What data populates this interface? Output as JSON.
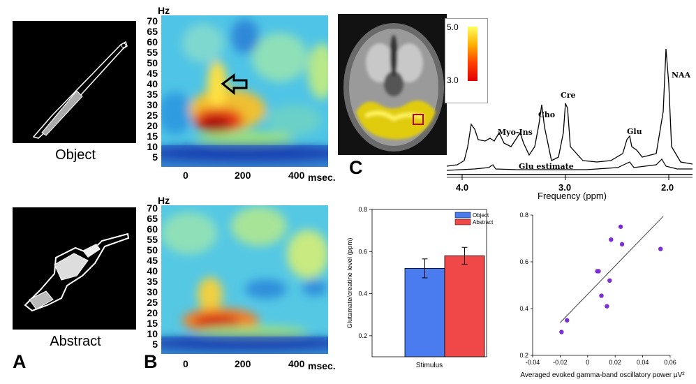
{
  "panel_a": {
    "letter": "A",
    "object_caption": "Object",
    "abstract_caption": "Abstract"
  },
  "panel_b": {
    "letter": "B",
    "y_unit": "Hz",
    "x_unit": "msec.",
    "y_ticks": [
      "70",
      "65",
      "60",
      "55",
      "50",
      "45",
      "40",
      "35",
      "30",
      "25",
      "20",
      "15",
      "10",
      "5"
    ],
    "x_ticks": [
      "0",
      "200",
      "400"
    ]
  },
  "panel_c": {
    "letter": "C",
    "colorbar_max": "5.0",
    "colorbar_min": "3.0",
    "peaks": {
      "myo": "Myo-Ins",
      "cho": "Cho",
      "cre": "Cre",
      "glu": "Glu",
      "naa": "NAA",
      "glu_estimate": "Glu estimate"
    },
    "freq_ticks": [
      "4.0",
      "3.0",
      "2.0"
    ],
    "freq_label": "Frequency (ppm)"
  },
  "chart_data": [
    {
      "type": "bar",
      "categories": [
        "Object",
        "Abstract"
      ],
      "values": [
        0.52,
        0.58
      ],
      "errors": [
        0.045,
        0.04
      ],
      "colors": [
        "#4a7cf0",
        "#f04848"
      ],
      "ylabel": "Glutamate/creatine level (ppm)",
      "xlabel": "Stimulus",
      "ylim": [
        0.1,
        0.8
      ],
      "yticks": [
        "0.2",
        "0.4",
        "0.6",
        "0.8"
      ],
      "legend": [
        "Object",
        "Abstract"
      ],
      "legend_position": "top-right"
    },
    {
      "type": "scatter",
      "x": [
        -0.019,
        -0.015,
        0.007,
        0.008,
        0.01,
        0.014,
        0.016,
        0.017,
        0.024,
        0.025,
        0.053
      ],
      "y": [
        0.3,
        0.35,
        0.56,
        0.56,
        0.455,
        0.41,
        0.52,
        0.695,
        0.75,
        0.675,
        0.655
      ],
      "fit_line": {
        "x": [
          -0.02,
          0.055
        ],
        "y": [
          0.34,
          0.795
        ]
      },
      "point_color": "#7a2fd6",
      "xlabel": "Averaged evoked gamma-band oscillatory power µV²",
      "xlim": [
        -0.04,
        0.06
      ],
      "ylim": [
        0.2,
        0.8
      ],
      "xticks": [
        "-0.04",
        "-0.02",
        "0",
        "0.02",
        "0.04",
        "0.06"
      ],
      "yticks": [
        "0.2",
        "0.4",
        "0.6",
        "0.8"
      ]
    }
  ]
}
